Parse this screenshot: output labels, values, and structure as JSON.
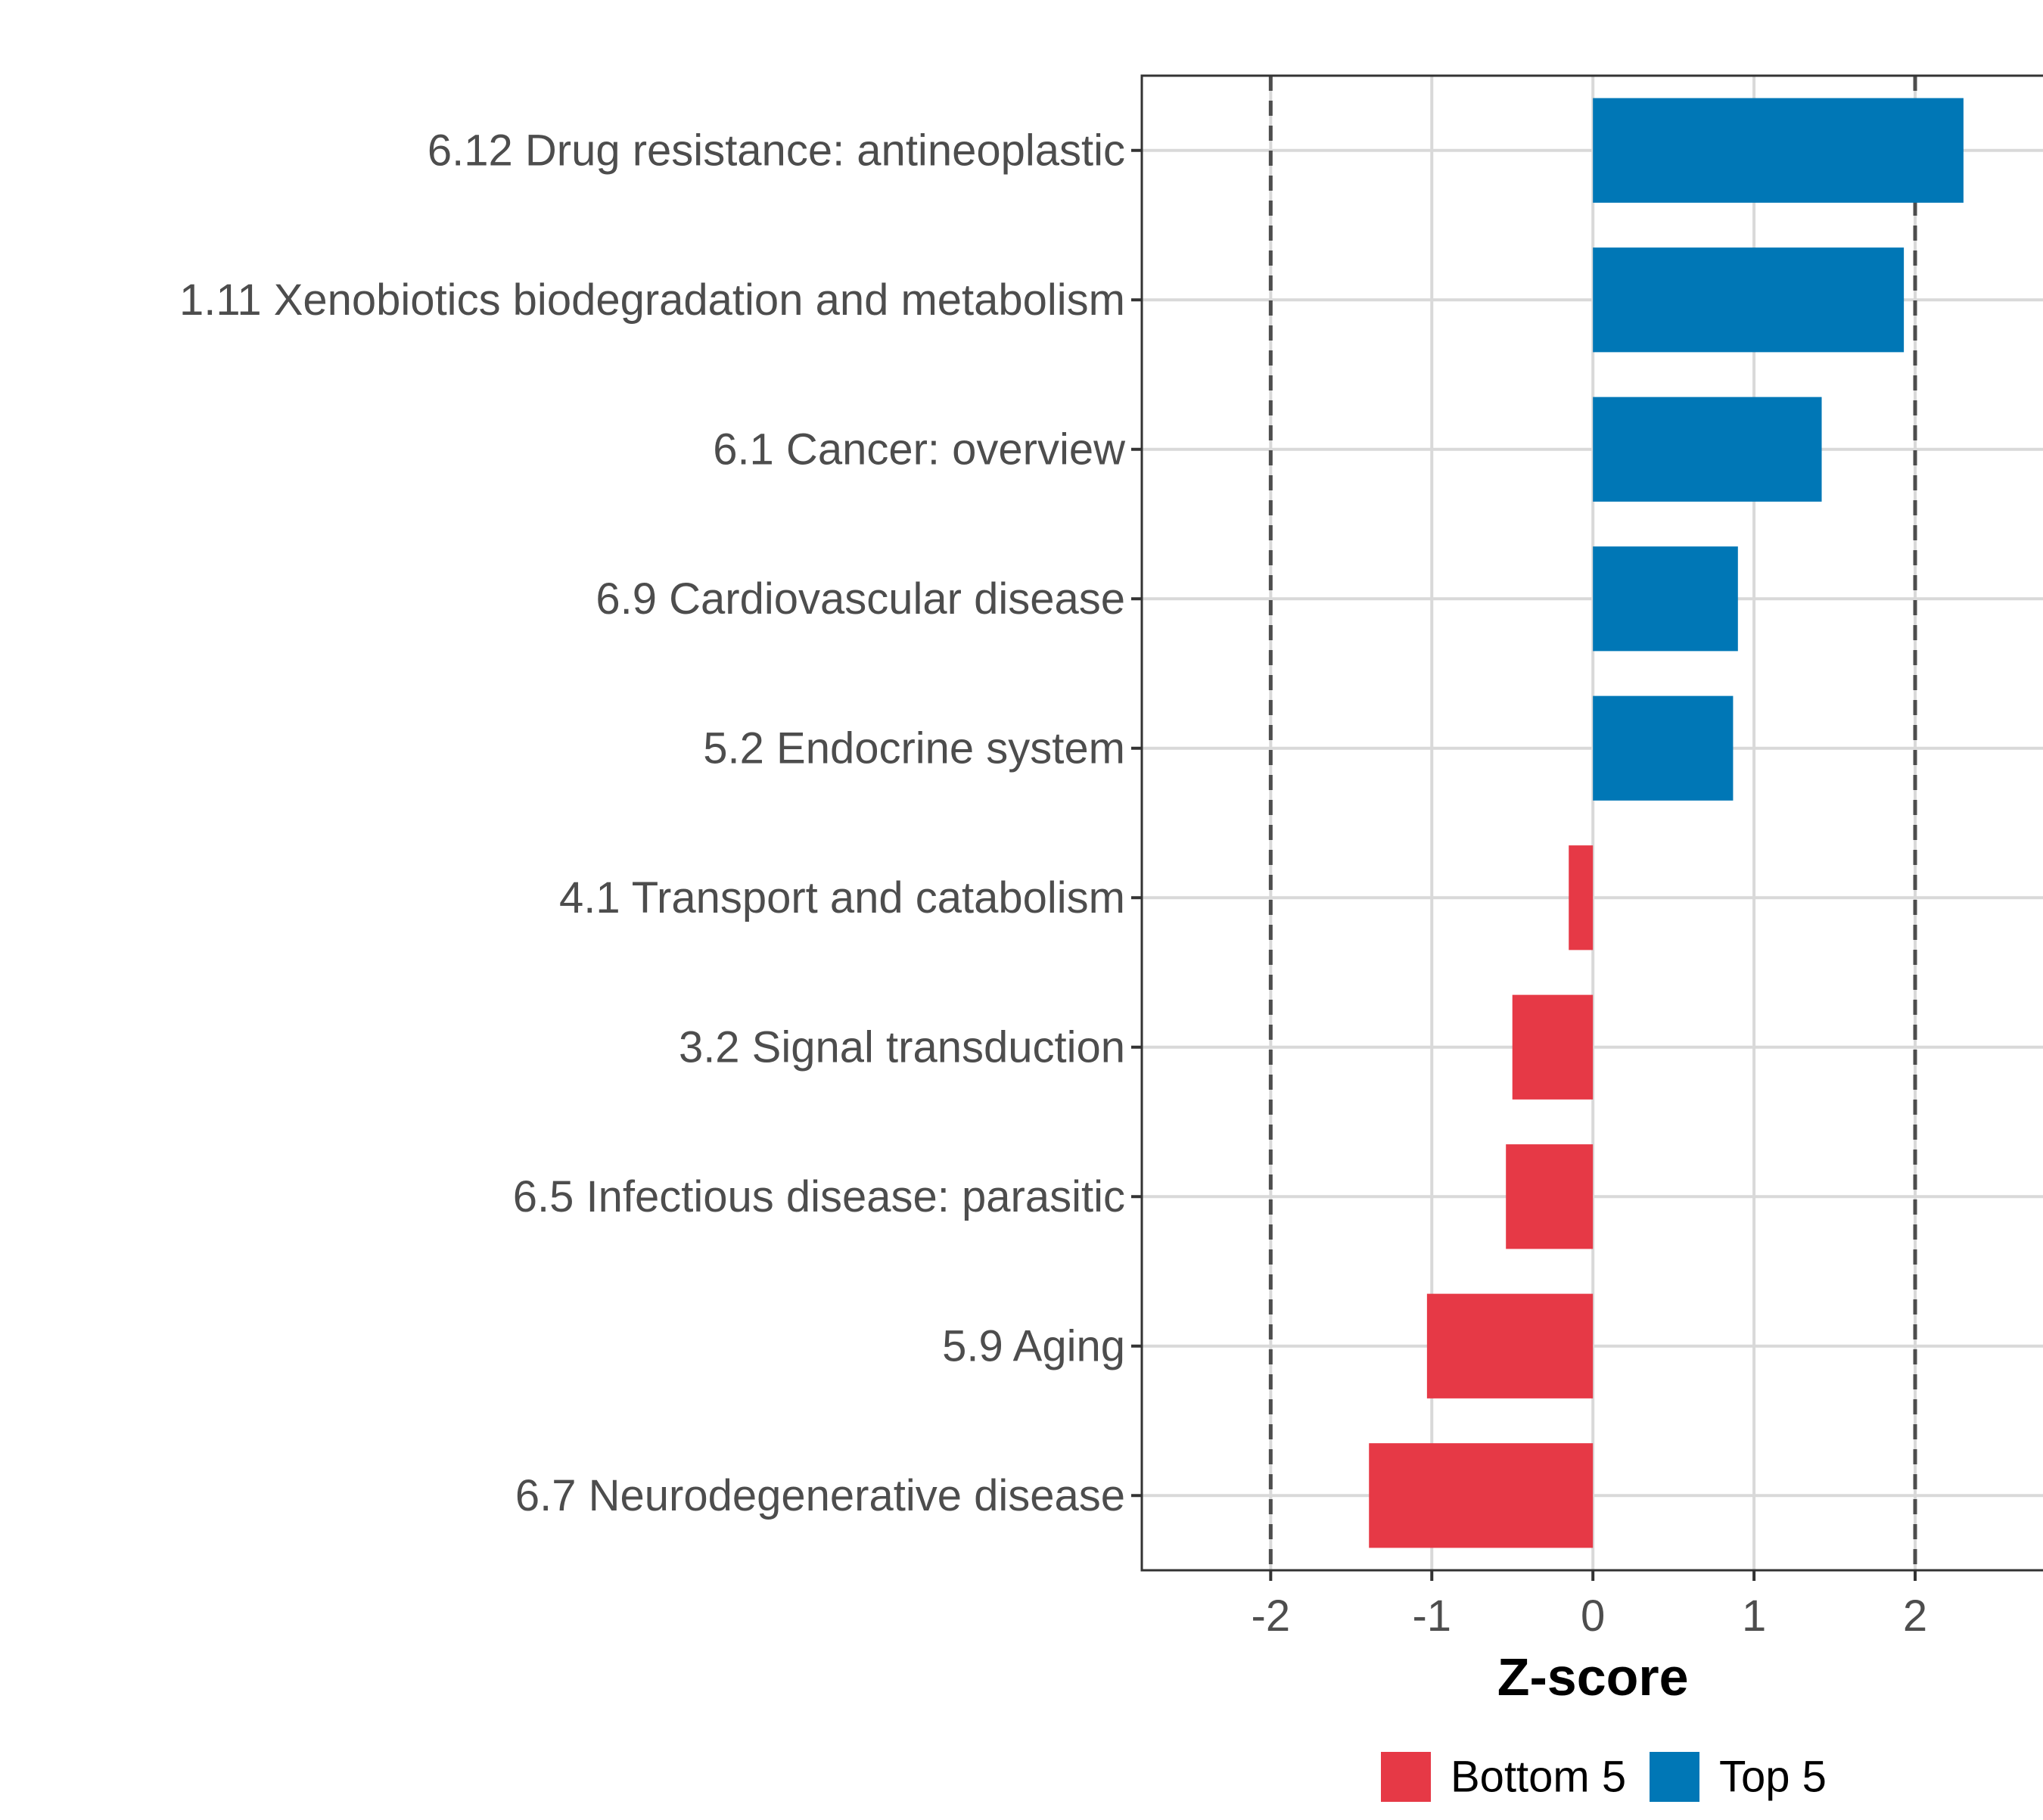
{
  "chart_data": {
    "type": "bar",
    "orientation": "horizontal",
    "title": "",
    "xlabel": "Z-score",
    "ylabel": "",
    "xlim": [
      -2.8,
      2.85
    ],
    "x_ticks": [
      -2,
      -1,
      0,
      1,
      2
    ],
    "x_tick_labels": [
      "-2",
      "-1",
      "0",
      "1",
      "2"
    ],
    "reference_lines": [
      -2,
      2
    ],
    "grid": true,
    "categories": [
      "6.12 Drug resistance: antineoplastic",
      "1.11 Xenobiotics biodegradation and metabolism",
      "6.1 Cancer: overview",
      "6.9 Cardiovascular disease",
      "5.2 Endocrine system",
      "4.1 Transport and catabolism",
      "3.2 Signal transduction",
      "6.5 Infectious disease: parasitic",
      "5.9 Aging",
      "6.7 Neurodegenerative disease"
    ],
    "values": [
      2.3,
      1.93,
      1.42,
      0.9,
      0.87,
      -0.15,
      -0.5,
      -0.54,
      -1.03,
      -1.39
    ],
    "groups": [
      "Top 5",
      "Top 5",
      "Top 5",
      "Top 5",
      "Top 5",
      "Bottom 5",
      "Bottom 5",
      "Bottom 5",
      "Bottom 5",
      "Bottom 5"
    ],
    "legend": [
      {
        "name": "Bottom 5",
        "color": "#e63946"
      },
      {
        "name": "Top 5",
        "color": "#0077b6"
      }
    ],
    "legend_position": "bottom",
    "colors": {
      "Top 5": "#0077b6",
      "Bottom 5": "#e63946",
      "grid": "#d9d9d9",
      "reference_line": "#4d4d4d",
      "panel_border": "#333333"
    }
  }
}
